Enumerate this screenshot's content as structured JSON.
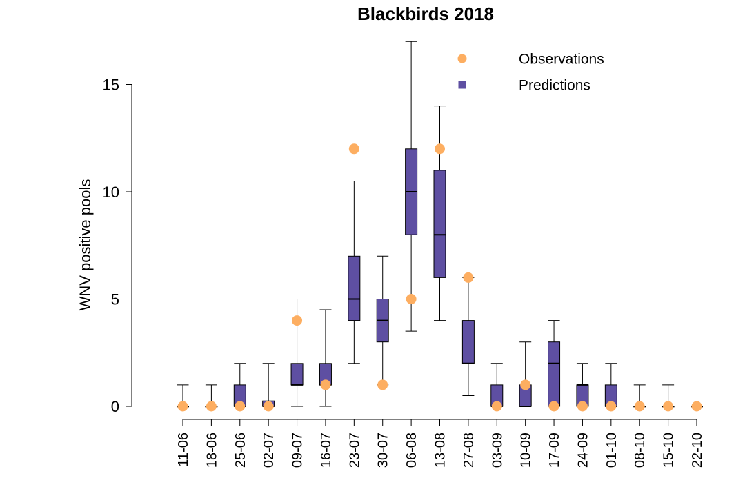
{
  "chart_data": {
    "type": "box",
    "title": "Blackbirds 2018",
    "xlabel": "",
    "ylabel": "WNV positive pools",
    "ylim": [
      -0.6,
      17
    ],
    "yticks": [
      0,
      5,
      10,
      15
    ],
    "categories": [
      "11-06",
      "18-06",
      "25-06",
      "02-07",
      "09-07",
      "16-07",
      "23-07",
      "30-07",
      "06-08",
      "13-08",
      "27-08",
      "03-09",
      "10-09",
      "17-09",
      "24-09",
      "01-10",
      "08-10",
      "15-10",
      "22-10"
    ],
    "legend": {
      "placement": "top-right",
      "entries": [
        {
          "label": "Observations",
          "color": "#FDAE61",
          "marker": "circle"
        },
        {
          "label": "Predictions",
          "color": "#5E4FA2",
          "marker": "square"
        }
      ]
    },
    "series": [
      {
        "name": "Predictions",
        "color": "#5E4FA2",
        "boxes": [
          {
            "min": 0,
            "q1": 0,
            "median": 0,
            "q3": 0,
            "max": 1
          },
          {
            "min": 0,
            "q1": 0,
            "median": 0,
            "q3": 0,
            "max": 1
          },
          {
            "min": 0,
            "q1": 0,
            "median": 0,
            "q3": 1,
            "max": 2
          },
          {
            "min": 0,
            "q1": 0,
            "median": 0,
            "q3": 0.25,
            "max": 2
          },
          {
            "min": 0,
            "q1": 1,
            "median": 1,
            "q3": 2,
            "max": 5
          },
          {
            "min": 0,
            "q1": 1,
            "median": 1,
            "q3": 2,
            "max": 4.5
          },
          {
            "min": 2,
            "q1": 4,
            "median": 5,
            "q3": 7,
            "max": 10.5
          },
          {
            "min": 1,
            "q1": 3,
            "median": 4,
            "q3": 5,
            "max": 7
          },
          {
            "min": 3.5,
            "q1": 8,
            "median": 10,
            "q3": 12,
            "max": 17
          },
          {
            "min": 4,
            "q1": 6,
            "median": 8,
            "q3": 11,
            "max": 14
          },
          {
            "min": 0.5,
            "q1": 2,
            "median": 2,
            "q3": 4,
            "max": 6
          },
          {
            "min": 0,
            "q1": 0,
            "median": 0,
            "q3": 1,
            "max": 2
          },
          {
            "min": 0,
            "q1": 0,
            "median": 0,
            "q3": 1,
            "max": 3
          },
          {
            "min": 0,
            "q1": 0,
            "median": 2,
            "q3": 3,
            "max": 4
          },
          {
            "min": 0,
            "q1": 0,
            "median": 1,
            "q3": 1,
            "max": 2
          },
          {
            "min": 0,
            "q1": 0,
            "median": 0,
            "q3": 1,
            "max": 2
          },
          {
            "min": 0,
            "q1": 0,
            "median": 0,
            "q3": 0,
            "max": 1
          },
          {
            "min": 0,
            "q1": 0,
            "median": 0,
            "q3": 0,
            "max": 1
          },
          {
            "min": 0,
            "q1": 0,
            "median": 0,
            "q3": 0,
            "max": 0
          }
        ]
      },
      {
        "name": "Observations",
        "color": "#FDAE61",
        "points": [
          [
            0
          ],
          [
            0
          ],
          [
            0
          ],
          [
            0
          ],
          [
            4
          ],
          [
            1
          ],
          [
            12
          ],
          [
            1
          ],
          [
            5
          ],
          [
            12
          ],
          [
            6
          ],
          [
            0
          ],
          [
            1
          ],
          [
            0
          ],
          [
            0
          ],
          [
            0
          ],
          [
            0
          ],
          [
            0
          ],
          [
            0
          ]
        ]
      }
    ]
  }
}
